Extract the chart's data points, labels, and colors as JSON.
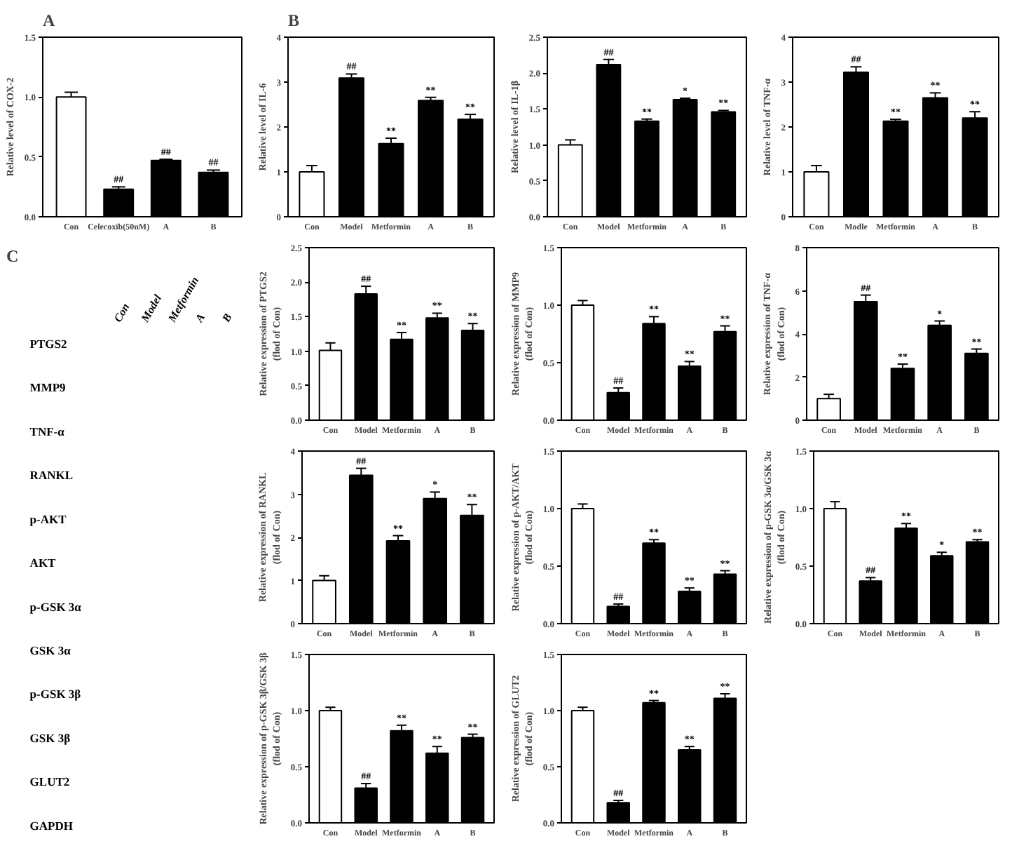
{
  "chart_data": [
    {
      "type": "bar",
      "title": "A",
      "ylabel": "Relative level of COX-2",
      "categories": [
        "Con",
        "Celecoxib(50nM)",
        "A",
        "B"
      ],
      "values": [
        1.0,
        0.23,
        0.47,
        0.37
      ],
      "colors": [
        "#ffffff",
        "#000000",
        "#000000",
        "#000000"
      ],
      "errors": [
        [
          1.0,
          1.04
        ],
        [
          0.23,
          0.25
        ],
        [
          0.47,
          0.48
        ],
        [
          0.37,
          0.39
        ]
      ],
      "ylim": [
        0,
        1.5
      ],
      "yticks": [
        {
          "value": 0,
          "label": "0.0"
        },
        0.5,
        {
          "value": 1,
          "label": "1.0"
        },
        1.5
      ],
      "annotations": [
        {
          "text": "##",
          "x": "Celecoxib(50nM)",
          "y": 0.25
        },
        {
          "text": "##",
          "x": "A",
          "y": 0.48
        },
        {
          "text": "##",
          "x": "B",
          "y": 0.39
        }
      ]
    },
    {
      "type": "bar",
      "title": "B",
      "ylabel": "Relative level of IL-6",
      "categories": [
        "Con",
        "Model",
        "Metformin",
        "A",
        "B"
      ],
      "values": [
        1.0,
        3.09,
        1.63,
        2.59,
        2.17
      ],
      "colors": [
        "#ffffff",
        "#000000",
        "#000000",
        "#000000",
        "#000000"
      ],
      "errors": [
        [
          1.0,
          1.14
        ],
        [
          3.09,
          3.18
        ],
        [
          1.63,
          1.75
        ],
        [
          2.59,
          2.66
        ],
        [
          2.17,
          2.28
        ]
      ],
      "ylim": [
        0,
        4
      ],
      "yticks": [
        0,
        1,
        2,
        3,
        4
      ],
      "annotations": [
        {
          "text": "##",
          "x": "Model",
          "y": 3.18
        },
        {
          "text": "**",
          "x": "Metformin",
          "y": 1.75
        },
        {
          "text": "**",
          "x": "A",
          "y": 2.66
        },
        {
          "text": "**",
          "x": "B",
          "y": 2.28
        }
      ]
    },
    {
      "type": "bar",
      "ylabel": "Relative level of IL-1β",
      "categories": [
        "Con",
        "Model",
        "Metformin",
        "A",
        "B"
      ],
      "values": [
        1.0,
        2.12,
        1.33,
        1.63,
        1.46
      ],
      "colors": [
        "#ffffff",
        "#000000",
        "#000000",
        "#000000",
        "#000000"
      ],
      "errors": [
        [
          1.0,
          1.07
        ],
        [
          2.12,
          2.19
        ],
        [
          1.33,
          1.36
        ],
        [
          1.63,
          1.65
        ],
        [
          1.46,
          1.48
        ]
      ],
      "ylim": [
        0,
        2.5
      ],
      "yticks": [
        {
          "value": 0,
          "label": "0.0"
        },
        0.5,
        {
          "value": 1,
          "label": "1.0"
        },
        1.5,
        {
          "value": 2,
          "label": "2.0"
        },
        2.5
      ],
      "annotations": [
        {
          "text": "##",
          "x": "Model",
          "y": 2.19
        },
        {
          "text": "**",
          "x": "Metformin",
          "y": 1.36
        },
        {
          "text": "*",
          "x": "A",
          "y": 1.65
        },
        {
          "text": "**",
          "x": "B",
          "y": 1.48
        }
      ]
    },
    {
      "type": "bar",
      "ylabel": "Relative level of TNF-α",
      "categories": [
        "Con",
        "Modle",
        "Metformin",
        "A",
        "B"
      ],
      "values": [
        1.0,
        3.22,
        2.13,
        2.65,
        2.2
      ],
      "colors": [
        "#ffffff",
        "#000000",
        "#000000",
        "#000000",
        "#000000"
      ],
      "errors": [
        [
          1.0,
          1.14
        ],
        [
          3.22,
          3.34
        ],
        [
          2.13,
          2.17
        ],
        [
          2.65,
          2.76
        ],
        [
          2.2,
          2.34
        ]
      ],
      "ylim": [
        0,
        4
      ],
      "yticks": [
        0,
        1,
        2,
        3,
        4
      ],
      "annotations": [
        {
          "text": "##",
          "x": "Modle",
          "y": 3.34
        },
        {
          "text": "**",
          "x": "Metformin",
          "y": 2.17
        },
        {
          "text": "**",
          "x": "A",
          "y": 2.76
        },
        {
          "text": "**",
          "x": "B",
          "y": 2.34
        }
      ]
    },
    {
      "type": "other",
      "title": "C",
      "categories": [
        "Con",
        "Model",
        "Metformin",
        "A",
        "B"
      ],
      "y_categories": [
        "PTGS2",
        "MMP9",
        "TNF-α",
        "RANKL",
        "p-AKT",
        "AKT",
        "p-GSK 3α",
        "GSK 3α",
        "p-GSK 3β",
        "GSK 3β",
        "GLUT2",
        "GAPDH"
      ]
    },
    {
      "type": "bar",
      "ylabel": "Relative expression of PTGS2\n(flod of Con)",
      "categories": [
        "Con",
        "Model",
        "Metformin",
        "A",
        "B"
      ],
      "values": [
        1.01,
        1.83,
        1.17,
        1.48,
        1.3
      ],
      "colors": [
        "#ffffff",
        "#000000",
        "#000000",
        "#000000",
        "#000000"
      ],
      "errors": [
        [
          1.01,
          1.12
        ],
        [
          1.83,
          1.94
        ],
        [
          1.17,
          1.27
        ],
        [
          1.48,
          1.55
        ],
        [
          1.3,
          1.4
        ]
      ],
      "ylim": [
        0,
        2.5
      ],
      "yticks": [
        {
          "value": 0,
          "label": "0.0"
        },
        0.5,
        {
          "value": 1,
          "label": "1.0"
        },
        1.5,
        {
          "value": 2,
          "label": "2.0"
        },
        2.5
      ],
      "annotations": [
        {
          "text": "##",
          "x": "Model",
          "y": 1.94
        },
        {
          "text": "**",
          "x": "Metformin",
          "y": 1.27
        },
        {
          "text": "**",
          "x": "A",
          "y": 1.55
        },
        {
          "text": "**",
          "x": "B",
          "y": 1.4
        }
      ]
    },
    {
      "type": "bar",
      "ylabel": "Relative expression of MMP9\n(flod of Con)",
      "categories": [
        "Con",
        "Model",
        "Metformin",
        "A",
        "B"
      ],
      "values": [
        1.0,
        0.24,
        0.84,
        0.47,
        0.77
      ],
      "colors": [
        "#ffffff",
        "#000000",
        "#000000",
        "#000000",
        "#000000"
      ],
      "errors": [
        [
          1.0,
          1.04
        ],
        [
          0.24,
          0.28
        ],
        [
          0.84,
          0.9
        ],
        [
          0.47,
          0.51
        ],
        [
          0.77,
          0.82
        ]
      ],
      "ylim": [
        0,
        1.5
      ],
      "yticks": [
        {
          "value": 0,
          "label": "0.0"
        },
        0.5,
        {
          "value": 1,
          "label": "1.0"
        },
        1.5
      ],
      "annotations": [
        {
          "text": "##",
          "x": "Model",
          "y": 0.28
        },
        {
          "text": "**",
          "x": "Metformin",
          "y": 0.9
        },
        {
          "text": "**",
          "x": "A",
          "y": 0.51
        },
        {
          "text": "**",
          "x": "B",
          "y": 0.82
        }
      ]
    },
    {
      "type": "bar",
      "ylabel": "Relative expression of TNF-α\n(flod of Con)",
      "categories": [
        "Con",
        "Model",
        "Metformin",
        "A",
        "B"
      ],
      "values": [
        1.0,
        5.5,
        2.4,
        4.4,
        3.1
      ],
      "colors": [
        "#ffffff",
        "#000000",
        "#000000",
        "#000000",
        "#000000"
      ],
      "errors": [
        [
          1.0,
          1.2
        ],
        [
          5.5,
          5.8
        ],
        [
          2.4,
          2.6
        ],
        [
          4.4,
          4.6
        ],
        [
          3.1,
          3.3
        ]
      ],
      "ylim": [
        0,
        8
      ],
      "yticks": [
        0,
        2,
        4,
        6,
        8
      ],
      "annotations": [
        {
          "text": "##",
          "x": "Model",
          "y": 5.8
        },
        {
          "text": "**",
          "x": "Metformin",
          "y": 2.6
        },
        {
          "text": "*",
          "x": "A",
          "y": 4.6
        },
        {
          "text": "**",
          "x": "B",
          "y": 3.3
        }
      ]
    },
    {
      "type": "bar",
      "ylabel": "Relative expression of RANKL\n(flod of Con)",
      "categories": [
        "Con",
        "Model",
        "Metformin",
        "A",
        "B"
      ],
      "values": [
        1.0,
        3.44,
        1.92,
        2.9,
        2.51
      ],
      "colors": [
        "#ffffff",
        "#000000",
        "#000000",
        "#000000",
        "#000000"
      ],
      "errors": [
        [
          1.0,
          1.11
        ],
        [
          3.44,
          3.6
        ],
        [
          1.92,
          2.04
        ],
        [
          2.9,
          3.05
        ],
        [
          2.51,
          2.76
        ]
      ],
      "ylim": [
        0,
        4
      ],
      "yticks": [
        0,
        1,
        2,
        3,
        4
      ],
      "annotations": [
        {
          "text": "##",
          "x": "Model",
          "y": 3.6
        },
        {
          "text": "**",
          "x": "Metformin",
          "y": 2.04
        },
        {
          "text": "*",
          "x": "A",
          "y": 3.05
        },
        {
          "text": "**",
          "x": "B",
          "y": 2.76
        }
      ]
    },
    {
      "type": "bar",
      "ylabel": "Relative expression of p-AKT/AKT\n(flod of Con)",
      "categories": [
        "Con",
        "Model",
        "Metformin",
        "A",
        "B"
      ],
      "values": [
        1.0,
        0.15,
        0.7,
        0.28,
        0.43
      ],
      "colors": [
        "#ffffff",
        "#000000",
        "#000000",
        "#000000",
        "#000000"
      ],
      "errors": [
        [
          1.0,
          1.04
        ],
        [
          0.15,
          0.17
        ],
        [
          0.7,
          0.73
        ],
        [
          0.28,
          0.31
        ],
        [
          0.43,
          0.46
        ]
      ],
      "ylim": [
        0,
        1.5
      ],
      "yticks": [
        {
          "value": 0,
          "label": "0.0"
        },
        0.5,
        {
          "value": 1,
          "label": "1.0"
        },
        1.5
      ],
      "annotations": [
        {
          "text": "##",
          "x": "Model",
          "y": 0.17
        },
        {
          "text": "**",
          "x": "Metformin",
          "y": 0.73
        },
        {
          "text": "**",
          "x": "A",
          "y": 0.31
        },
        {
          "text": "**",
          "x": "B",
          "y": 0.46
        }
      ]
    },
    {
      "type": "bar",
      "ylabel": "Relative expression of p-GSK 3α/GSK 3α\n(flod of Con)",
      "categories": [
        "Con",
        "Model",
        "Metformin",
        "A",
        "B"
      ],
      "values": [
        1.0,
        0.37,
        0.83,
        0.59,
        0.71
      ],
      "colors": [
        "#ffffff",
        "#000000",
        "#000000",
        "#000000",
        "#000000"
      ],
      "errors": [
        [
          1.0,
          1.06
        ],
        [
          0.37,
          0.4
        ],
        [
          0.83,
          0.87
        ],
        [
          0.59,
          0.62
        ],
        [
          0.71,
          0.73
        ]
      ],
      "ylim": [
        0,
        1.5
      ],
      "yticks": [
        {
          "value": 0,
          "label": "0.0"
        },
        0.5,
        {
          "value": 1,
          "label": "1.0"
        },
        1.5
      ],
      "annotations": [
        {
          "text": "##",
          "x": "Model",
          "y": 0.4
        },
        {
          "text": "**",
          "x": "Metformin",
          "y": 0.87
        },
        {
          "text": "*",
          "x": "A",
          "y": 0.62
        },
        {
          "text": "**",
          "x": "B",
          "y": 0.73
        }
      ]
    },
    {
      "type": "bar",
      "ylabel": "Relative expression of p-GSK 3β/GSK 3β\n(flod of Con)",
      "categories": [
        "Con",
        "Model",
        "Metformin",
        "A",
        "B"
      ],
      "values": [
        1.0,
        0.31,
        0.82,
        0.62,
        0.76
      ],
      "colors": [
        "#ffffff",
        "#000000",
        "#000000",
        "#000000",
        "#000000"
      ],
      "errors": [
        [
          1.0,
          1.03
        ],
        [
          0.31,
          0.35
        ],
        [
          0.82,
          0.87
        ],
        [
          0.62,
          0.68
        ],
        [
          0.76,
          0.79
        ]
      ],
      "ylim": [
        0,
        1.5
      ],
      "yticks": [
        {
          "value": 0,
          "label": "0.0"
        },
        0.5,
        {
          "value": 1,
          "label": "1.0"
        },
        1.5
      ],
      "annotations": [
        {
          "text": "##",
          "x": "Model",
          "y": 0.35
        },
        {
          "text": "**",
          "x": "Metformin",
          "y": 0.87
        },
        {
          "text": "**",
          "x": "A",
          "y": 0.68
        },
        {
          "text": "**",
          "x": "B",
          "y": 0.79
        }
      ]
    },
    {
      "type": "bar",
      "ylabel": "Relative expression of GLUT2\n(flod of Con)",
      "categories": [
        "Con",
        "Model",
        "Metformin",
        "A",
        "B"
      ],
      "values": [
        1.0,
        0.18,
        1.07,
        0.65,
        1.11
      ],
      "colors": [
        "#ffffff",
        "#000000",
        "#000000",
        "#000000",
        "#000000"
      ],
      "errors": [
        [
          1.0,
          1.03
        ],
        [
          0.18,
          0.2
        ],
        [
          1.07,
          1.09
        ],
        [
          0.65,
          0.68
        ],
        [
          1.11,
          1.15
        ]
      ],
      "ylim": [
        0,
        1.5
      ],
      "yticks": [
        {
          "value": 0,
          "label": "0.0"
        },
        0.5,
        {
          "value": 1,
          "label": "1.0"
        },
        1.5
      ],
      "annotations": [
        {
          "text": "##",
          "x": "Model",
          "y": 0.2
        },
        {
          "text": "**",
          "x": "Metformin",
          "y": 1.09
        },
        {
          "text": "**",
          "x": "A",
          "y": 0.68
        },
        {
          "text": "**",
          "x": "B",
          "y": 1.15
        }
      ]
    }
  ]
}
